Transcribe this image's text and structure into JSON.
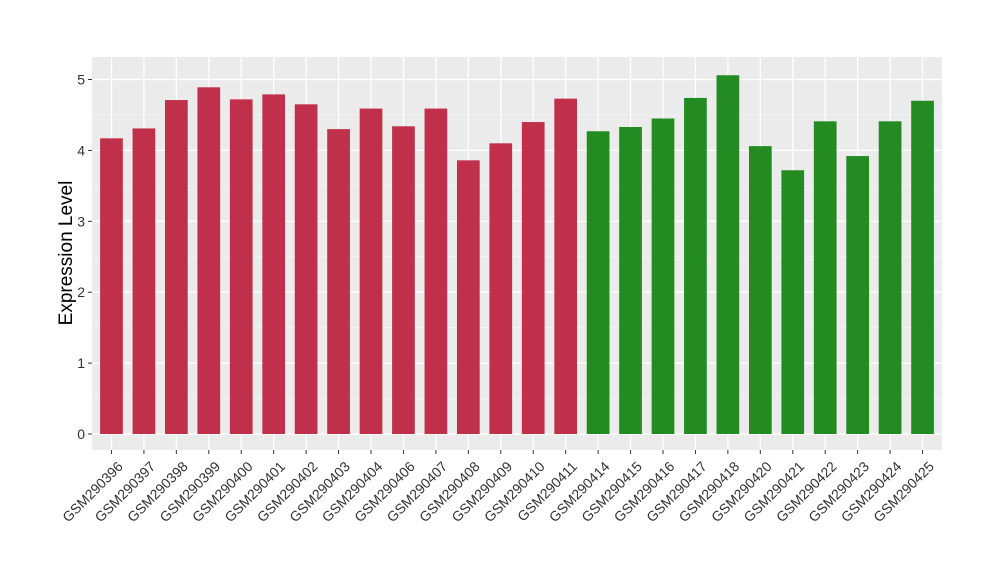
{
  "chart_data": {
    "type": "bar",
    "ylabel": "Expression Level",
    "xlabel": "",
    "ylim": [
      -0.3,
      5.15
    ],
    "yticks": [
      0,
      1,
      2,
      3,
      4,
      5
    ],
    "grid": true,
    "background": "#ebebeb",
    "group_colors": [
      "#c0304a",
      "#238b22"
    ],
    "categories": [
      "GSM290396",
      "GSM290397",
      "GSM290398",
      "GSM290399",
      "GSM290400",
      "GSM290401",
      "GSM290402",
      "GSM290403",
      "GSM290404",
      "GSM290406",
      "GSM290407",
      "GSM290408",
      "GSM290409",
      "GSM290410",
      "GSM290411",
      "GSM290414",
      "GSM290415",
      "GSM290416",
      "GSM290417",
      "GSM290418",
      "GSM290420",
      "GSM290421",
      "GSM290422",
      "GSM290423",
      "GSM290424",
      "GSM290425"
    ],
    "values": [
      4.17,
      4.31,
      4.71,
      4.89,
      4.72,
      4.79,
      4.65,
      4.3,
      4.59,
      4.34,
      4.59,
      3.86,
      4.1,
      4.4,
      4.73,
      4.27,
      4.33,
      4.45,
      4.74,
      5.06,
      4.06,
      3.72,
      4.41,
      3.92,
      4.41,
      4.7
    ],
    "groups": [
      0,
      0,
      0,
      0,
      0,
      0,
      0,
      0,
      0,
      0,
      0,
      0,
      0,
      0,
      0,
      1,
      1,
      1,
      1,
      1,
      1,
      1,
      1,
      1,
      1,
      1
    ]
  }
}
